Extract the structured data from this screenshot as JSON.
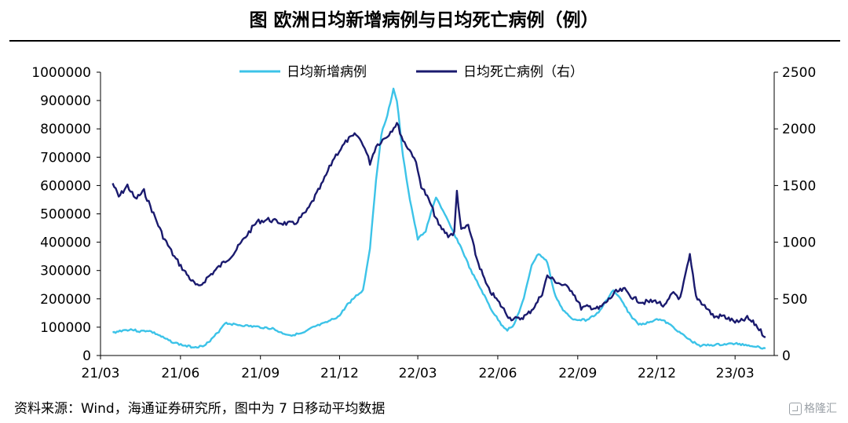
{
  "title": "图  欧洲日均新增病例与日均死亡病例（例）",
  "source": "资料来源：Wind，海通证券研究所，图中为 7 日移动平均数据",
  "watermark": "格隆汇",
  "colors": {
    "new_cases": "#3CC3E8",
    "deaths": "#1A1A6E",
    "axis": "#000000"
  },
  "chart_data": {
    "type": "line",
    "title": "图  欧洲日均新增病例与日均死亡病例（例）",
    "xlabel": "",
    "ylabel": "",
    "x_ticks": [
      "21/03",
      "21/06",
      "21/09",
      "21/12",
      "22/03",
      "22/06",
      "22/09",
      "22/12",
      "23/03"
    ],
    "y_left_ticks": [
      "0",
      "100000",
      "200000",
      "300000",
      "400000",
      "500000",
      "600000",
      "700000",
      "800000",
      "900000",
      "1000000"
    ],
    "y_right_ticks": [
      "0",
      "500",
      "1000",
      "1500",
      "2000",
      "2500"
    ],
    "ylim_left": [
      0,
      1000000
    ],
    "ylim_right": [
      0,
      2500
    ],
    "grid": false,
    "legend_position": "top-center",
    "series": [
      {
        "name": "日均新增病例",
        "axis": "left",
        "points": [
          [
            "2021-03-15",
            80000
          ],
          [
            "2021-03-25",
            88000
          ],
          [
            "2021-04-05",
            92000
          ],
          [
            "2021-04-15",
            85000
          ],
          [
            "2021-04-25",
            88000
          ],
          [
            "2021-05-05",
            75000
          ],
          [
            "2021-05-15",
            58000
          ],
          [
            "2021-05-25",
            45000
          ],
          [
            "2021-06-05",
            35000
          ],
          [
            "2021-06-15",
            30000
          ],
          [
            "2021-06-25",
            32000
          ],
          [
            "2021-07-05",
            50000
          ],
          [
            "2021-07-15",
            85000
          ],
          [
            "2021-07-22",
            115000
          ],
          [
            "2021-08-01",
            110000
          ],
          [
            "2021-08-15",
            105000
          ],
          [
            "2021-09-01",
            100000
          ],
          [
            "2021-09-15",
            95000
          ],
          [
            "2021-09-25",
            80000
          ],
          [
            "2021-10-05",
            72000
          ],
          [
            "2021-10-20",
            78000
          ],
          [
            "2021-11-01",
            100000
          ],
          [
            "2021-11-15",
            115000
          ],
          [
            "2021-12-01",
            140000
          ],
          [
            "2021-12-10",
            180000
          ],
          [
            "2021-12-20",
            210000
          ],
          [
            "2021-12-28",
            230000
          ],
          [
            "2022-01-05",
            380000
          ],
          [
            "2022-01-12",
            620000
          ],
          [
            "2022-01-18",
            780000
          ],
          [
            "2022-01-25",
            850000
          ],
          [
            "2022-02-01",
            940000
          ],
          [
            "2022-02-05",
            900000
          ],
          [
            "2022-02-12",
            700000
          ],
          [
            "2022-02-20",
            550000
          ],
          [
            "2022-03-01",
            410000
          ],
          [
            "2022-03-10",
            440000
          ],
          [
            "2022-03-18",
            520000
          ],
          [
            "2022-03-22",
            560000
          ],
          [
            "2022-03-30",
            510000
          ],
          [
            "2022-04-10",
            440000
          ],
          [
            "2022-04-20",
            380000
          ],
          [
            "2022-05-01",
            300000
          ],
          [
            "2022-05-15",
            220000
          ],
          [
            "2022-05-25",
            160000
          ],
          [
            "2022-06-05",
            110000
          ],
          [
            "2022-06-12",
            90000
          ],
          [
            "2022-06-20",
            110000
          ],
          [
            "2022-07-01",
            200000
          ],
          [
            "2022-07-10",
            320000
          ],
          [
            "2022-07-18",
            360000
          ],
          [
            "2022-07-28",
            330000
          ],
          [
            "2022-08-05",
            220000
          ],
          [
            "2022-08-15",
            160000
          ],
          [
            "2022-08-25",
            130000
          ],
          [
            "2022-09-10",
            125000
          ],
          [
            "2022-09-25",
            150000
          ],
          [
            "2022-10-05",
            200000
          ],
          [
            "2022-10-12",
            230000
          ],
          [
            "2022-10-20",
            200000
          ],
          [
            "2022-11-01",
            140000
          ],
          [
            "2022-11-10",
            110000
          ],
          [
            "2022-11-20",
            115000
          ],
          [
            "2022-12-01",
            130000
          ],
          [
            "2022-12-10",
            120000
          ],
          [
            "2022-12-20",
            100000
          ],
          [
            "2023-01-01",
            70000
          ],
          [
            "2023-01-10",
            50000
          ],
          [
            "2023-01-20",
            35000
          ],
          [
            "2023-02-10",
            38000
          ],
          [
            "2023-03-01",
            42000
          ],
          [
            "2023-03-20",
            35000
          ],
          [
            "2023-04-05",
            25000
          ]
        ]
      },
      {
        "name": "日均死亡病例（右）",
        "axis": "right",
        "points": [
          [
            "2021-03-15",
            1520
          ],
          [
            "2021-03-22",
            1400
          ],
          [
            "2021-04-01",
            1500
          ],
          [
            "2021-04-10",
            1380
          ],
          [
            "2021-04-20",
            1450
          ],
          [
            "2021-05-01",
            1250
          ],
          [
            "2021-05-12",
            1050
          ],
          [
            "2021-05-25",
            870
          ],
          [
            "2021-06-05",
            750
          ],
          [
            "2021-06-15",
            650
          ],
          [
            "2021-06-22",
            600
          ],
          [
            "2021-07-01",
            680
          ],
          [
            "2021-07-15",
            780
          ],
          [
            "2021-08-01",
            900
          ],
          [
            "2021-08-15",
            1050
          ],
          [
            "2021-08-28",
            1180
          ],
          [
            "2021-09-10",
            1200
          ],
          [
            "2021-09-25",
            1170
          ],
          [
            "2021-10-10",
            1160
          ],
          [
            "2021-10-25",
            1280
          ],
          [
            "2021-11-10",
            1500
          ],
          [
            "2021-11-25",
            1750
          ],
          [
            "2021-12-10",
            1900
          ],
          [
            "2021-12-20",
            1950
          ],
          [
            "2021-12-28",
            1870
          ],
          [
            "2022-01-05",
            1700
          ],
          [
            "2022-01-12",
            1850
          ],
          [
            "2022-01-25",
            1940
          ],
          [
            "2022-02-05",
            2050
          ],
          [
            "2022-02-12",
            1900
          ],
          [
            "2022-02-25",
            1750
          ],
          [
            "2022-03-05",
            1500
          ],
          [
            "2022-03-15",
            1350
          ],
          [
            "2022-03-25",
            1150
          ],
          [
            "2022-04-05",
            1060
          ],
          [
            "2022-04-12",
            1080
          ],
          [
            "2022-04-15",
            1450
          ],
          [
            "2022-04-20",
            1100
          ],
          [
            "2022-04-28",
            1150
          ],
          [
            "2022-05-08",
            850
          ],
          [
            "2022-05-20",
            600
          ],
          [
            "2022-06-01",
            480
          ],
          [
            "2022-06-15",
            330
          ],
          [
            "2022-06-25",
            320
          ],
          [
            "2022-07-05",
            360
          ],
          [
            "2022-07-15",
            450
          ],
          [
            "2022-07-22",
            550
          ],
          [
            "2022-07-28",
            700
          ],
          [
            "2022-08-10",
            640
          ],
          [
            "2022-08-25",
            580
          ],
          [
            "2022-09-05",
            420
          ],
          [
            "2022-09-15",
            430
          ],
          [
            "2022-09-25",
            410
          ],
          [
            "2022-10-05",
            480
          ],
          [
            "2022-10-15",
            560
          ],
          [
            "2022-10-25",
            580
          ],
          [
            "2022-11-05",
            500
          ],
          [
            "2022-11-15",
            470
          ],
          [
            "2022-12-01",
            480
          ],
          [
            "2022-12-10",
            430
          ],
          [
            "2022-12-20",
            560
          ],
          [
            "2022-12-28",
            500
          ],
          [
            "2023-01-05",
            780
          ],
          [
            "2023-01-08",
            880
          ],
          [
            "2023-01-15",
            520
          ],
          [
            "2023-01-25",
            440
          ],
          [
            "2023-02-05",
            340
          ],
          [
            "2023-02-15",
            350
          ],
          [
            "2023-02-25",
            310
          ],
          [
            "2023-03-05",
            290
          ],
          [
            "2023-03-15",
            330
          ],
          [
            "2023-03-25",
            270
          ],
          [
            "2023-04-05",
            160
          ]
        ]
      }
    ]
  }
}
